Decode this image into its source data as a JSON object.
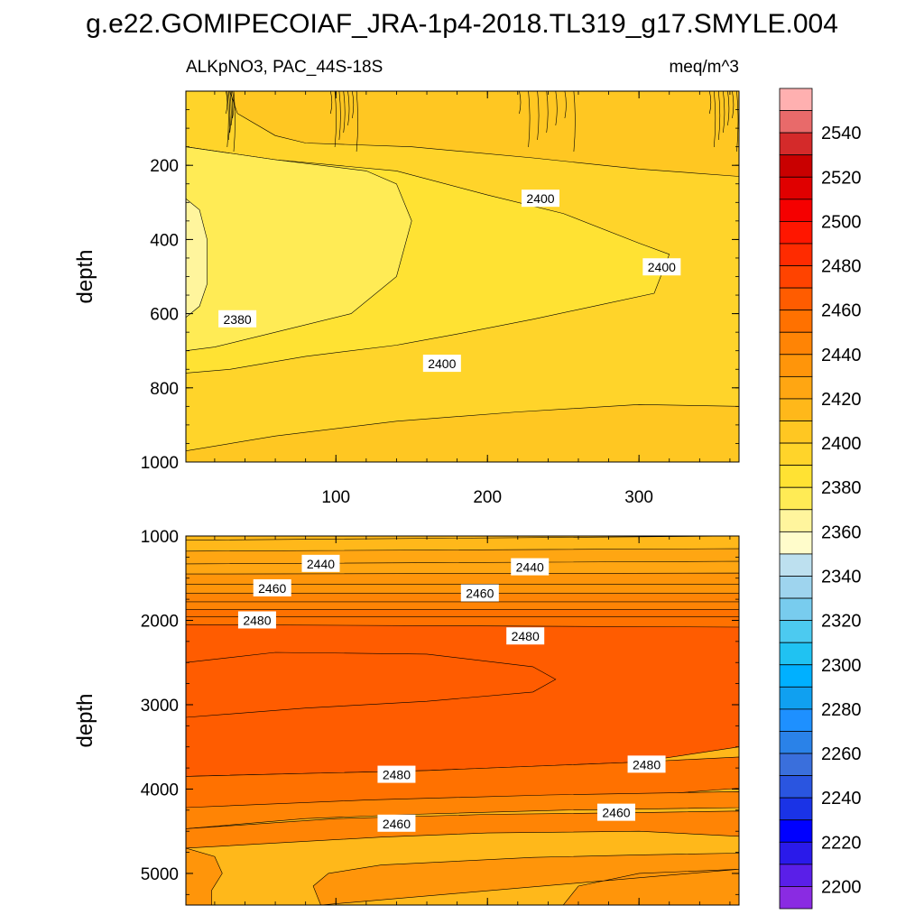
{
  "title": "g.e22.GOMIPECOIAF_JRA-1p4-2018.TL319_g17.SMYLE.004",
  "colors": {
    "scale": [
      "#8a2be2",
      "#5a1fe8",
      "#2a1aea",
      "#0000ff",
      "#1a33e6",
      "#2a55e0",
      "#3a6fdc",
      "#2a82e8",
      "#1e90ff",
      "#10a0f0",
      "#00b0ff",
      "#20c2f2",
      "#4ccaf0",
      "#78ccee",
      "#9ed4ee",
      "#bde0ef",
      "#fffccb",
      "#fff59d",
      "#ffeb55",
      "#ffe233",
      "#ffd42a",
      "#ffc722",
      "#ffb81a",
      "#ffa612",
      "#ff950a",
      "#ff8405",
      "#ff7100",
      "#ff5c00",
      "#ff4300",
      "#ff2b00",
      "#ff1600",
      "#f50000",
      "#e00000",
      "#c90000",
      "#d42a2a",
      "#e86a6a",
      "#ffb0b0"
    ],
    "outline": "#000000"
  },
  "chart_data": [
    {
      "type": "heatmap",
      "subtitle_left": "ALKpNO3, PAC_44S-18S",
      "subtitle_right": "meq/m^3",
      "ylabel": "depth",
      "xlabel": "",
      "x_ticks": [
        100,
        200,
        300
      ],
      "xlim": [
        1,
        366
      ],
      "y_ticks": [
        200,
        400,
        600,
        800,
        1000
      ],
      "ylim": [
        1000,
        0
      ],
      "contour_labels": [
        {
          "text": "2400",
          "x": 235,
          "y": 290
        },
        {
          "text": "2400",
          "x": 315,
          "y": 475
        },
        {
          "text": "2380",
          "x": 35,
          "y": 615
        },
        {
          "text": "2400",
          "x": 170,
          "y": 735
        }
      ],
      "regions": [
        {
          "level": 2410,
          "outline": [
            [
              1,
              0
            ],
            [
              366,
              0
            ],
            [
              366,
              1000
            ],
            [
              1,
              1000
            ]
          ]
        },
        {
          "level": 2400,
          "outline": [
            [
              1,
              0
            ],
            [
              30,
              0
            ],
            [
              35,
              60
            ],
            [
              60,
              120
            ],
            [
              80,
              140
            ],
            [
              150,
              150
            ],
            [
              230,
              180
            ],
            [
              300,
              210
            ],
            [
              366,
              230
            ],
            [
              366,
              850
            ],
            [
              300,
              845
            ],
            [
              220,
              865
            ],
            [
              140,
              890
            ],
            [
              60,
              930
            ],
            [
              1,
              970
            ]
          ]
        },
        {
          "level": 2390,
          "outline": [
            [
              1,
              150
            ],
            [
              60,
              185
            ],
            [
              140,
              215
            ],
            [
              200,
              280
            ],
            [
              250,
              330
            ],
            [
              300,
              410
            ],
            [
              320,
              440
            ],
            [
              310,
              545
            ],
            [
              270,
              580
            ],
            [
              230,
              615
            ],
            [
              180,
              655
            ],
            [
              140,
              685
            ],
            [
              80,
              715
            ],
            [
              30,
              750
            ],
            [
              1,
              760
            ]
          ]
        },
        {
          "level": 2380,
          "outline": [
            [
              1,
              180
            ],
            [
              40,
              220
            ],
            [
              60,
              240
            ],
            [
              62,
              300
            ],
            [
              65,
              400
            ],
            [
              60,
              500
            ],
            [
              40,
              580
            ],
            [
              20,
              640
            ],
            [
              1,
              660
            ]
          ]
        },
        {
          "level": 2390,
          "outline": [
            [
              1,
              180
            ],
            [
              40,
              220
            ],
            [
              60,
              240
            ],
            [
              62,
              300
            ],
            [
              65,
              400
            ],
            [
              60,
              500
            ],
            [
              40,
              580
            ],
            [
              20,
              640
            ],
            [
              1,
              660
            ]
          ]
        },
        {
          "level": 2380,
          "outline": [
            [
              1,
              150
            ],
            [
              60,
              185
            ],
            [
              120,
              215
            ],
            [
              140,
              250
            ],
            [
              150,
              350
            ],
            [
              140,
              500
            ],
            [
              110,
              600
            ],
            [
              60,
              650
            ],
            [
              20,
              690
            ],
            [
              1,
              700
            ]
          ]
        },
        {
          "level": 2370,
          "outline": [
            [
              1,
              290
            ],
            [
              10,
              320
            ],
            [
              15,
              400
            ],
            [
              15,
              520
            ],
            [
              10,
              580
            ],
            [
              1,
              610
            ]
          ]
        }
      ],
      "cap_fringes": [
        {
          "x0": 27,
          "x1": 33,
          "level": 2410
        },
        {
          "x0": 95,
          "x1": 115,
          "level": 2410
        },
        {
          "x0": 218,
          "x1": 260,
          "level": 2420
        },
        {
          "x0": 345,
          "x1": 366,
          "level": 2420
        }
      ]
    },
    {
      "type": "heatmap",
      "ylabel": "depth",
      "xlabel": "",
      "x_ticks": [
        100,
        200,
        300
      ],
      "xlim": [
        1,
        366
      ],
      "y_ticks": [
        1000,
        2000,
        3000,
        4000,
        5000
      ],
      "ylim": [
        5375,
        1000
      ],
      "contour_labels": [
        {
          "text": "2440",
          "x": 90,
          "y": 1330
        },
        {
          "text": "2440",
          "x": 228,
          "y": 1370
        },
        {
          "text": "2460",
          "x": 58,
          "y": 1620
        },
        {
          "text": "2460",
          "x": 195,
          "y": 1680
        },
        {
          "text": "2480",
          "x": 48,
          "y": 2000
        },
        {
          "text": "2480",
          "x": 225,
          "y": 2190
        },
        {
          "text": "2480",
          "x": 140,
          "y": 3830
        },
        {
          "text": "2480",
          "x": 305,
          "y": 3710
        },
        {
          "text": "2460",
          "x": 140,
          "y": 4410
        },
        {
          "text": "2460",
          "x": 285,
          "y": 4280
        }
      ],
      "regions": [
        {
          "level": 2415,
          "outline": [
            [
              1,
              1000
            ],
            [
              366,
              1000
            ],
            [
              366,
              5375
            ],
            [
              1,
              5375
            ]
          ]
        },
        {
          "level": 2420,
          "outline": [
            [
              1,
              1050
            ],
            [
              366,
              1000
            ],
            [
              366,
              1180
            ],
            [
              1,
              1230
            ]
          ]
        },
        {
          "level": 2425,
          "outline": [
            [
              1,
              1180
            ],
            [
              366,
              1150
            ],
            [
              366,
              1340
            ],
            [
              1,
              1380
            ]
          ]
        },
        {
          "level": 2430,
          "outline": [
            [
              1,
              1330
            ],
            [
              366,
              1300
            ],
            [
              366,
              1480
            ],
            [
              1,
              1520
            ]
          ]
        },
        {
          "level": 2435,
          "outline": [
            [
              1,
              1450
            ],
            [
              366,
              1440
            ],
            [
              366,
              1600
            ],
            [
              1,
              1640
            ]
          ]
        },
        {
          "level": 2440,
          "outline": [
            [
              1,
              1570
            ],
            [
              366,
              1570
            ],
            [
              366,
              1720
            ],
            [
              1,
              1760
            ]
          ]
        },
        {
          "level": 2445,
          "outline": [
            [
              1,
              1680
            ],
            [
              366,
              1680
            ],
            [
              366,
              1820
            ],
            [
              1,
              1860
            ]
          ]
        },
        {
          "level": 2450,
          "outline": [
            [
              1,
              1780
            ],
            [
              366,
              1780
            ],
            [
              366,
              1930
            ],
            [
              1,
              1960
            ]
          ]
        },
        {
          "level": 2455,
          "outline": [
            [
              1,
              1870
            ],
            [
              366,
              1870
            ],
            [
              366,
              2060
            ],
            [
              1,
              2080
            ]
          ]
        },
        {
          "level": 2460,
          "outline": [
            [
              1,
              1960
            ],
            [
              366,
              1960
            ],
            [
              366,
              2220
            ],
            [
              1,
              2250
            ]
          ]
        },
        {
          "level": 2465,
          "outline": [
            [
              1,
              2050
            ],
            [
              366,
              2080
            ],
            [
              366,
              3500
            ],
            [
              300,
              3680
            ],
            [
              160,
              3780
            ],
            [
              1,
              3850
            ]
          ]
        },
        {
          "level": 2470,
          "outline": [
            [
              1,
              2500
            ],
            [
              60,
              2380
            ],
            [
              160,
              2400
            ],
            [
              230,
              2550
            ],
            [
              245,
              2700
            ],
            [
              230,
              2850
            ],
            [
              160,
              2960
            ],
            [
              80,
              3040
            ],
            [
              1,
              3150
            ]
          ]
        },
        {
          "level": 2455,
          "outline": [
            [
              1,
              3850
            ],
            [
              160,
              3780
            ],
            [
              300,
              3680
            ],
            [
              366,
              3620
            ],
            [
              366,
              3990
            ],
            [
              300,
              4080
            ],
            [
              160,
              4220
            ],
            [
              1,
              4340
            ]
          ]
        },
        {
          "level": 2450,
          "outline": [
            [
              1,
              4220
            ],
            [
              120,
              4130
            ],
            [
              240,
              4070
            ],
            [
              366,
              4030
            ],
            [
              366,
              4220
            ],
            [
              250,
              4250
            ],
            [
              150,
              4300
            ],
            [
              80,
              4350
            ],
            [
              1,
              4470
            ]
          ]
        },
        {
          "level": 2445,
          "outline": [
            [
              1,
              4470
            ],
            [
              100,
              4350
            ],
            [
              200,
              4300
            ],
            [
              300,
              4280
            ],
            [
              366,
              4260
            ],
            [
              366,
              4560
            ],
            [
              300,
              4500
            ],
            [
              200,
              4520
            ],
            [
              130,
              4570
            ],
            [
              1,
              4700
            ]
          ]
        },
        {
          "level": 2440,
          "outline": [
            [
              1,
              4700
            ],
            [
              20,
              4800
            ],
            [
              25,
              5000
            ],
            [
              18,
              5200
            ],
            [
              18,
              5375
            ],
            [
              1,
              5375
            ]
          ]
        },
        {
          "level": 2440,
          "outline": [
            [
              90,
              5375
            ],
            [
              85,
              5150
            ],
            [
              95,
              5000
            ],
            [
              130,
              4900
            ],
            [
              230,
              4810
            ],
            [
              300,
              4780
            ],
            [
              366,
              4760
            ],
            [
              366,
              5375
            ],
            [
              250,
              5375
            ],
            [
              260,
              5150
            ],
            [
              300,
              5000
            ],
            [
              366,
              4950
            ]
          ]
        }
      ]
    }
  ],
  "colorbar": {
    "labels": [
      "2540",
      "2520",
      "2500",
      "2480",
      "2460",
      "2440",
      "2420",
      "2400",
      "2380",
      "2360",
      "2340",
      "2320",
      "2300",
      "2280",
      "2260",
      "2240",
      "2220",
      "2200"
    ]
  }
}
